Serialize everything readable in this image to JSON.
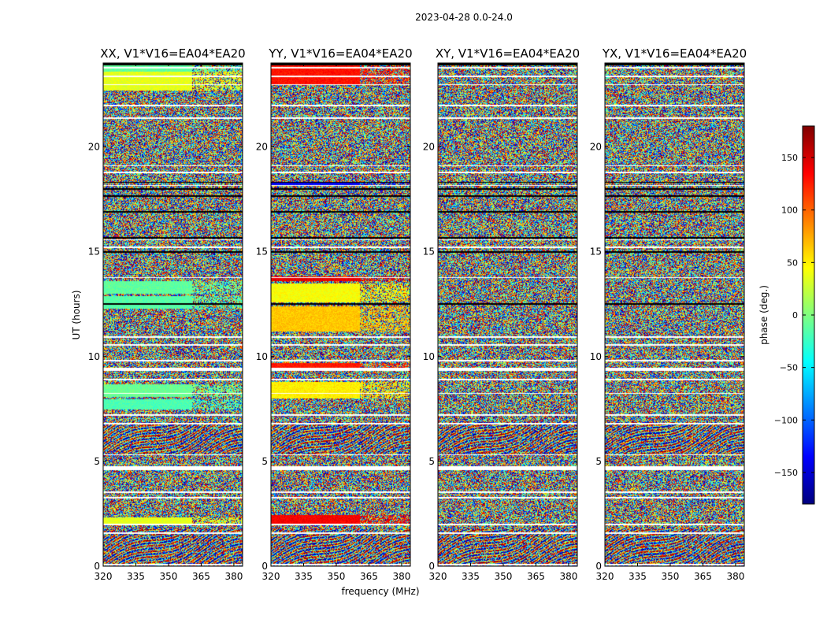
{
  "chart_data": {
    "type": "heatmap",
    "title": "2023-04-28 0.0-24.0",
    "xlabel": "frequency (MHz)",
    "ylabel": "UT (hours)",
    "xlim": [
      320,
      384
    ],
    "ylim": [
      0,
      24
    ],
    "xticks": [
      320,
      335,
      350,
      365,
      380
    ],
    "yticks": [
      0,
      5,
      10,
      15,
      20
    ],
    "panels": [
      {
        "title": "XX, V1*V16=EA04*EA20",
        "pattern": "xx"
      },
      {
        "title": "YY, V1*V16=EA04*EA20",
        "pattern": "yy"
      },
      {
        "title": "XY, V1*V16=EA04*EA20",
        "pattern": "cross"
      },
      {
        "title": "YX, V1*V16=EA04*EA20",
        "pattern": "cross"
      }
    ],
    "colorbar": {
      "label": "phase (deg.)",
      "range": [
        -180,
        180
      ],
      "ticks": [
        150,
        100,
        50,
        0,
        -50,
        -100,
        -150
      ],
      "tick_labels": [
        "150",
        "100",
        "50",
        "0",
        "−50",
        "−100",
        "−150"
      ],
      "colormap": "jet"
    },
    "flagged_bands_hours": [
      [
        0.05,
        0.12
      ],
      [
        1.55,
        1.62
      ],
      [
        1.98,
        2.03
      ],
      [
        3.25,
        3.32
      ],
      [
        3.5,
        3.58
      ],
      [
        4.6,
        4.78
      ],
      [
        5.3,
        5.35
      ],
      [
        6.78,
        6.86
      ],
      [
        7.2,
        7.28
      ],
      [
        8.25,
        8.3
      ],
      [
        8.9,
        8.95
      ],
      [
        9.35,
        9.48
      ],
      [
        9.78,
        9.86
      ],
      [
        10.55,
        10.62
      ],
      [
        10.92,
        10.98
      ],
      [
        13.75,
        13.82
      ],
      [
        15.2,
        15.25
      ],
      [
        15.55,
        15.6
      ],
      [
        18.15,
        18.2
      ],
      [
        18.75,
        18.82
      ],
      [
        19.1,
        19.15
      ],
      [
        21.35,
        21.42
      ],
      [
        21.95,
        22.02
      ],
      [
        22.95,
        23.02
      ],
      [
        23.35,
        23.42
      ],
      [
        23.75,
        23.82
      ]
    ],
    "no_data_bands_hours": [
      [
        12.5,
        12.56
      ],
      [
        14.95,
        15.03
      ],
      [
        15.65,
        15.72
      ],
      [
        16.9,
        16.96
      ],
      [
        17.65,
        17.72
      ],
      [
        17.98,
        18.05
      ],
      [
        18.3,
        18.36
      ],
      [
        23.9,
        24.0
      ]
    ]
  }
}
